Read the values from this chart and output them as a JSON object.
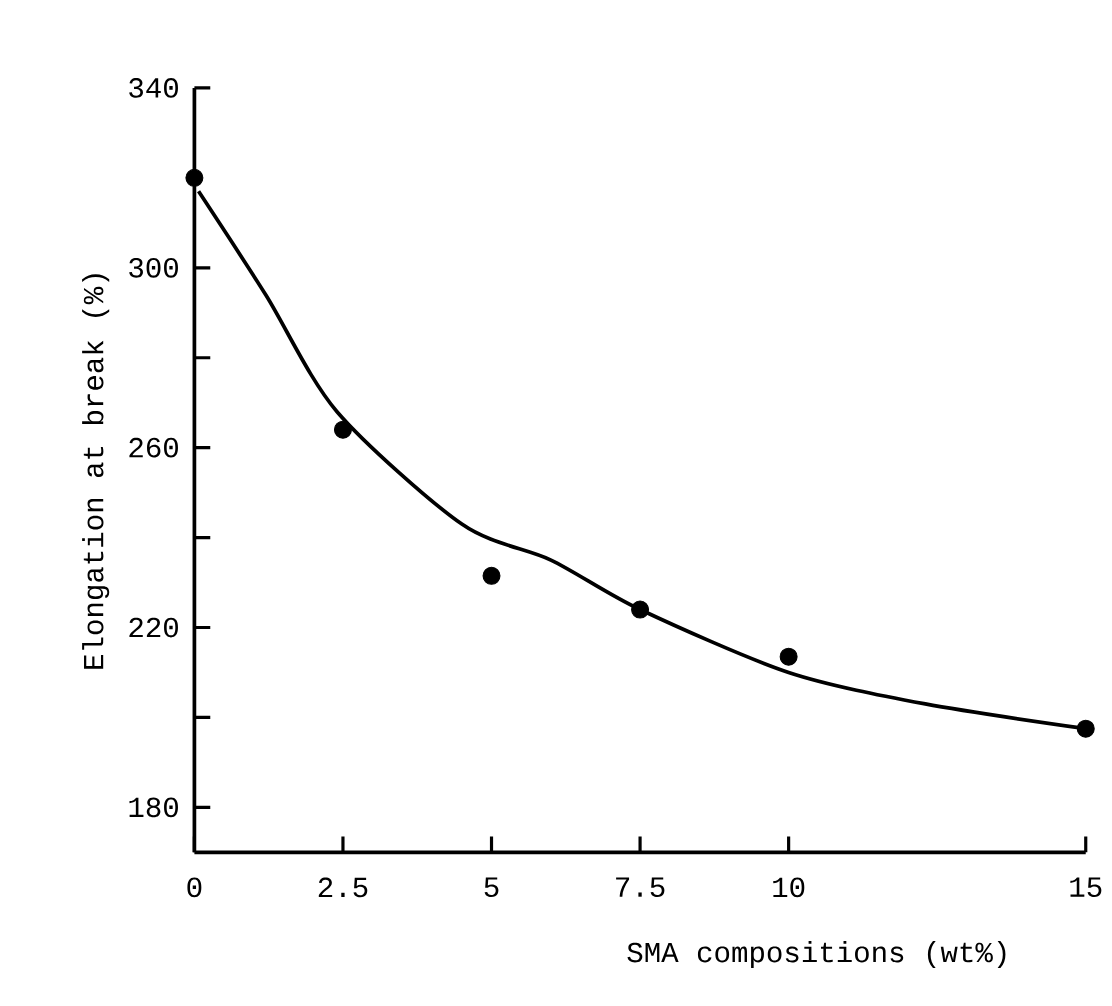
{
  "chart_data": {
    "type": "scatter",
    "xlabel": "SMA compositions (wt%)",
    "ylabel": "Elongation at break (%)",
    "xlim": [
      0,
      15
    ],
    "xticks": [
      0,
      2.5,
      5,
      7.5,
      10,
      15
    ],
    "ylim": [
      170,
      340
    ],
    "yticks": [
      180,
      {
        "value": 200,
        "label": null
      },
      220,
      {
        "value": 240,
        "label": null
      },
      260,
      {
        "value": 280,
        "label": null
      },
      300,
      340
    ],
    "series": [
      {
        "color": "#000000",
        "marker": "circle",
        "x": [
          0,
          2.5,
          5,
          7.5,
          10,
          15
        ],
        "values": [
          320,
          264,
          231.5,
          224,
          213.5,
          197.5
        ]
      },
      {
        "type": "line",
        "color": "#000000",
        "marker": "none",
        "x": [
          0.07,
          1.2,
          2.4,
          4.5,
          6,
          7.5,
          10,
          12.3,
          15
        ],
        "values": [
          317,
          294,
          268,
          243,
          235,
          224,
          210,
          203,
          197.5
        ]
      }
    ]
  }
}
